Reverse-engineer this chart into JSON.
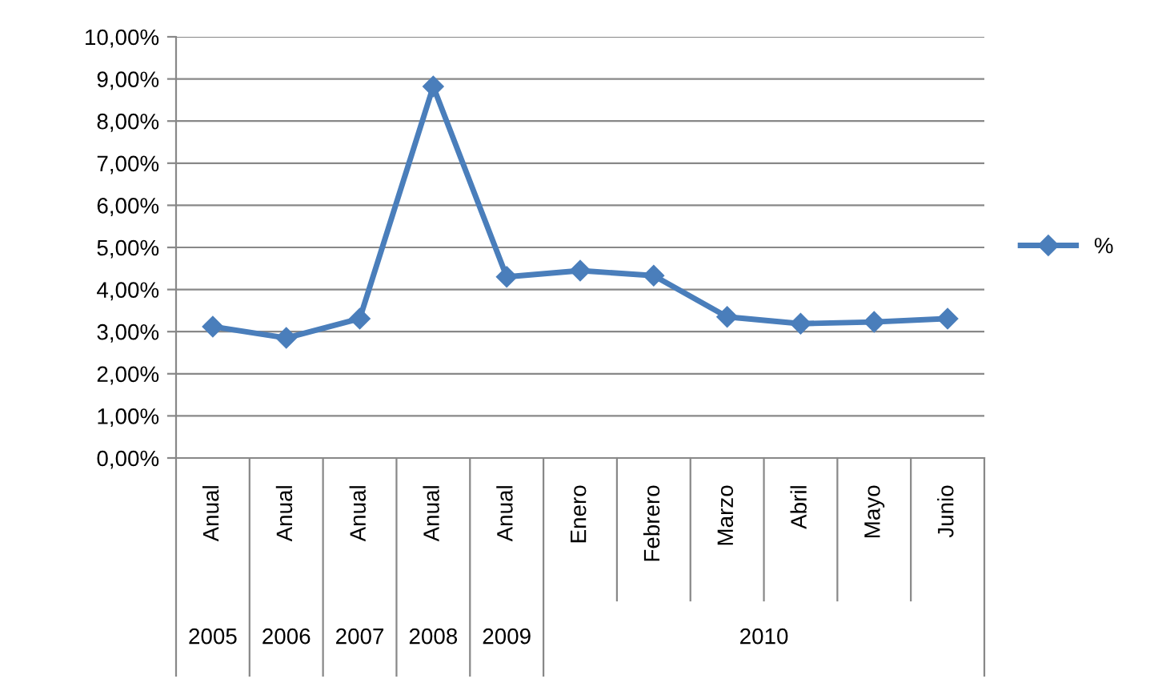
{
  "chart_data": {
    "type": "line",
    "categories": [
      "Anual",
      "Anual",
      "Anual",
      "Anual",
      "Anual",
      "Enero",
      "Febrero",
      "Marzo",
      "Abril",
      "Mayo",
      "Junio"
    ],
    "series": [
      {
        "name": "%",
        "color": "#4a7ebb",
        "values": [
          3.12,
          2.85,
          3.31,
          8.82,
          4.3,
          4.45,
          4.33,
          3.35,
          3.19,
          3.23,
          3.31
        ]
      }
    ],
    "ylim": [
      0,
      10
    ],
    "yticks": [
      {
        "value": 0,
        "label": "0,00%"
      },
      {
        "value": 1,
        "label": "1,00%"
      },
      {
        "value": 2,
        "label": "2,00%"
      },
      {
        "value": 3,
        "label": "3,00%"
      },
      {
        "value": 4,
        "label": "4,00%"
      },
      {
        "value": 5,
        "label": "5,00%"
      },
      {
        "value": 6,
        "label": "6,00%"
      },
      {
        "value": 7,
        "label": "7,00%"
      },
      {
        "value": 8,
        "label": "8,00%"
      },
      {
        "value": 9,
        "label": "9,00%"
      },
      {
        "value": 10,
        "label": "10,00%"
      }
    ],
    "annotations": [
      "2005",
      "2006",
      "2007",
      "2008",
      "2009",
      "2010"
    ],
    "grid": "y",
    "legend": "right",
    "marker": "diamond",
    "line_style": "solid"
  }
}
